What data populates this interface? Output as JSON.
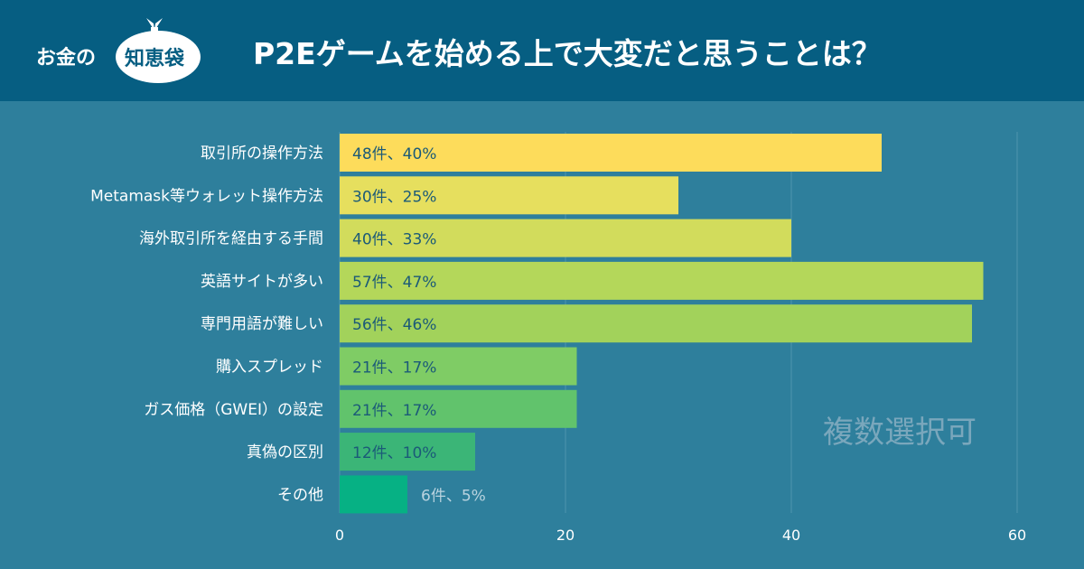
{
  "header": {
    "logo_prefix": "お金の",
    "logo_bag": "知恵袋",
    "title": "P2Eゲームを始める上で大変だと思うことは？"
  },
  "annotation": "複数選択可",
  "chart_data": {
    "type": "bar",
    "orientation": "horizontal",
    "title": "P2Eゲームを始める上で大変だと思うことは？",
    "categories": [
      "取引所の操作方法",
      "Metamask等ウォレット操作方法",
      "海外取引所を経由する手間",
      "英語サイトが多い",
      "専門用語が難しい",
      "購入スプレッド",
      "ガス価格（GWEI）の設定",
      "真偽の区別",
      "その他"
    ],
    "values": [
      48,
      30,
      40,
      57,
      56,
      21,
      21,
      12,
      6
    ],
    "data_labels": [
      "48件、40%",
      "30件、25%",
      "40件、33%",
      "57件、47%",
      "56件、46%",
      "21件、17%",
      "21件、17%",
      "12件、10%",
      "6件、5%"
    ],
    "bar_colors": [
      "#fddc5b",
      "#e6df5e",
      "#d2dc5c",
      "#b4d75a",
      "#a2d25b",
      "#7fcc65",
      "#61c36c",
      "#3bb577",
      "#06b184"
    ],
    "xlim": [
      0,
      60
    ],
    "xticks": [
      0,
      20,
      40,
      60
    ],
    "grid": true,
    "xlabel": "",
    "ylabel": ""
  },
  "colors": {
    "header_bg": "#065e82",
    "background": "#2e7f9c",
    "label_text": "#ffffff",
    "value_text": "#1b5a78",
    "outside_label_text": "#b9d3df",
    "grid": "#4f95ae"
  }
}
